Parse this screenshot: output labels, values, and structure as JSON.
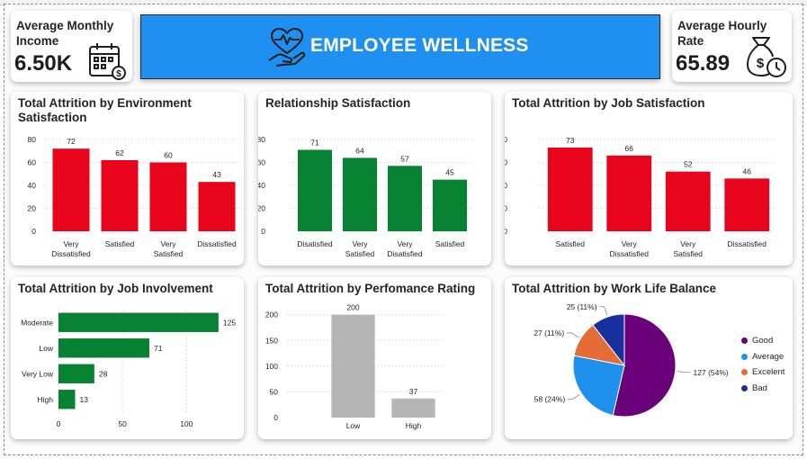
{
  "header": {
    "title": "EMPLOYEE WELLNESS",
    "icon": "heart-hand-icon"
  },
  "kpis": [
    {
      "label": "Average Monthly Income",
      "value": "6.50K",
      "icon": "calendar-dollar-icon"
    },
    {
      "label": "Average Hourly Rate",
      "value": "65.89",
      "icon": "money-bag-clock-icon"
    }
  ],
  "colors": {
    "red": "#e8041c",
    "green": "#078132",
    "gray": "#b5b5b5",
    "banner": "#1f8ff2"
  },
  "chart_data": [
    {
      "id": "env",
      "type": "bar",
      "title": "Total Attrition by Environment Satisfaction",
      "categories": [
        "Very Dissatisfied",
        "Satisfied",
        "Very Satisfied",
        "Dissatisfied"
      ],
      "values": [
        72,
        62,
        60,
        43
      ],
      "ylim": [
        0,
        80
      ],
      "yticks": [
        0,
        20,
        40,
        60,
        80
      ],
      "color": "#e8041c",
      "grid": true
    },
    {
      "id": "rel",
      "type": "bar",
      "title": "Relationship Satisfaction",
      "categories": [
        "Disatisfied",
        "Very Satisfied",
        "Very Disatisfied",
        "Satisfied"
      ],
      "values": [
        71,
        64,
        57,
        45
      ],
      "ylim": [
        0,
        80
      ],
      "yticks": [
        0,
        20,
        40,
        60,
        80
      ],
      "color": "#078132",
      "grid": true
    },
    {
      "id": "job",
      "type": "bar",
      "title": "Total Attrition by Job Satisfaction",
      "categories": [
        "Satisfied",
        "Very Dissatisfied",
        "Very Satisfied",
        "Dissatisfied"
      ],
      "values": [
        73,
        66,
        52,
        46
      ],
      "ylim": [
        0,
        80
      ],
      "yticks": [
        0,
        20,
        40,
        60,
        80
      ],
      "color": "#e8041c",
      "grid": true
    },
    {
      "id": "inv",
      "type": "bar",
      "orientation": "horizontal",
      "title": "Total Attrition by Job Involvement",
      "categories": [
        "Moderate",
        "Low",
        "Very Low",
        "High"
      ],
      "values": [
        125,
        71,
        28,
        13
      ],
      "xlim": [
        0,
        130
      ],
      "xticks": [
        0,
        50,
        100
      ],
      "color": "#078132",
      "grid": true
    },
    {
      "id": "perf",
      "type": "bar",
      "title": "Total Attrition by Perfomance Rating",
      "categories": [
        "Low",
        "High"
      ],
      "values": [
        200,
        37
      ],
      "ylim": [
        0,
        210
      ],
      "yticks": [
        0,
        50,
        100,
        150,
        200
      ],
      "color": "#b5b5b5",
      "grid": true
    },
    {
      "id": "wlb",
      "type": "pie",
      "title": "Total Attrition by Work Life Balance",
      "slices": [
        {
          "label": "Good",
          "value": 127,
          "data_label": "127 (54%)",
          "color": "#6b007b"
        },
        {
          "label": "Average",
          "value": 58,
          "data_label": "58 (24%)",
          "color": "#1e90ee"
        },
        {
          "label": "Excelent",
          "value": 27,
          "data_label": "27 (11%)",
          "color": "#e66c37"
        },
        {
          "label": "Bad",
          "value": 25,
          "data_label": "25 (11%)",
          "color": "#1a2f9e"
        }
      ],
      "legend": "right"
    }
  ]
}
